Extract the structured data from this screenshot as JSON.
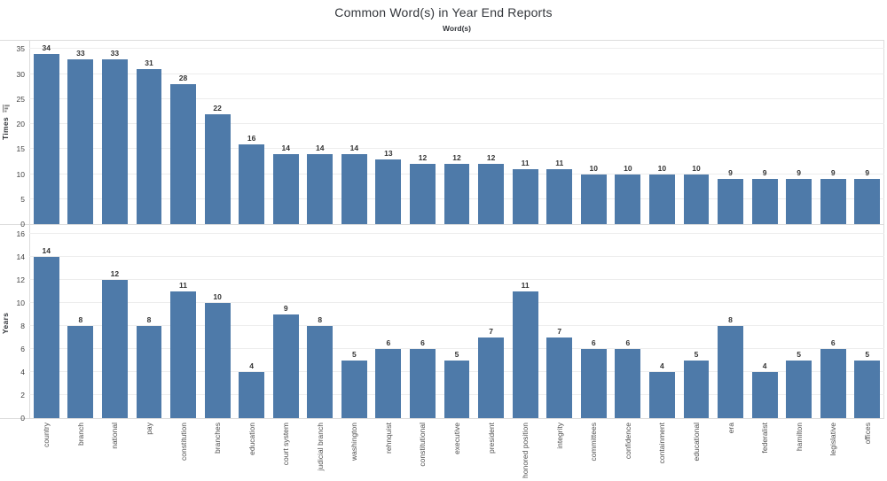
{
  "chart_data": {
    "type": "bar",
    "title": "Common Word(s) in Year End Reports",
    "xlabel": "Word(s)",
    "categories": [
      "country",
      "branch",
      "national",
      "pay",
      "constitution",
      "branches",
      "education",
      "court system",
      "judicial branch",
      "washington",
      "rehnquist",
      "constitutional",
      "executive",
      "president",
      "honored position",
      "integrity",
      "committees",
      "confidence",
      "containment",
      "educational",
      "era",
      "federalist",
      "hamilton",
      "legislative",
      "offices"
    ],
    "series": [
      {
        "name": "Times",
        "values": [
          34,
          33,
          33,
          31,
          28,
          22,
          16,
          14,
          14,
          14,
          13,
          12,
          12,
          12,
          11,
          11,
          10,
          10,
          10,
          10,
          9,
          9,
          9,
          9,
          9
        ],
        "ylim": [
          0,
          35
        ],
        "ytick_step": 5
      },
      {
        "name": "Years",
        "values": [
          14,
          8,
          12,
          8,
          11,
          10,
          4,
          9,
          8,
          5,
          6,
          6,
          5,
          7,
          11,
          7,
          6,
          6,
          4,
          5,
          8,
          4,
          5,
          6,
          5
        ],
        "ylim": [
          0,
          16
        ],
        "ytick_step": 2
      }
    ],
    "grid": true,
    "legend": "none",
    "bar_labels": true
  },
  "icons": {
    "sort": "sort-descending-icon"
  },
  "colors": {
    "bar": "#4e7aa9",
    "grid_line": "#ededed",
    "axis_line": "#dcdcdc",
    "title_text": "#33363b",
    "tick_text": "#424242",
    "category_text": "#4e4e4e",
    "mark_label_text": "#333333"
  }
}
